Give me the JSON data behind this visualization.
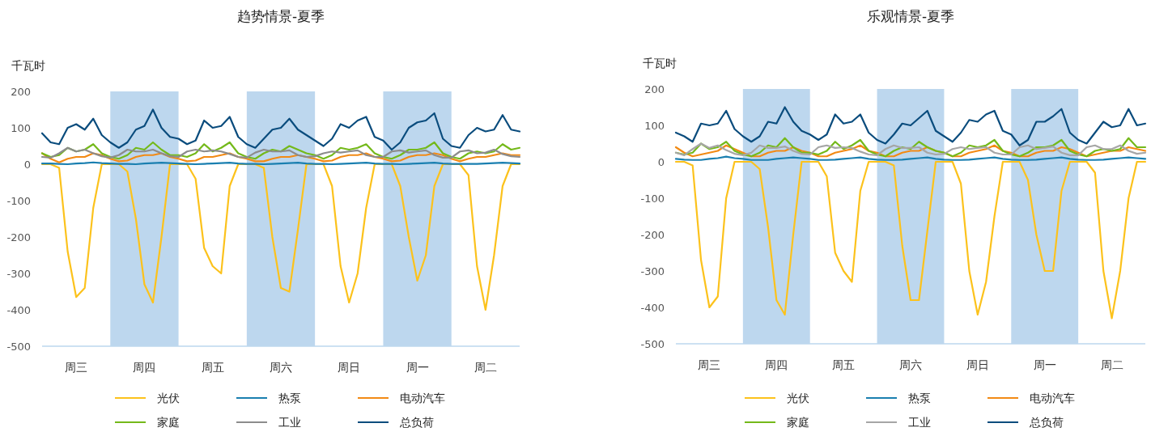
{
  "chart_data": [
    {
      "type": "line",
      "title": "趋势情景-夏季",
      "ylabel": "千瓦时",
      "grid": false,
      "legend": "bottom",
      "marker": "none",
      "line_style": "solid",
      "categories": [
        null,
        null,
        null,
        null,
        "周三",
        null,
        null,
        null,
        null,
        null,
        null,
        null,
        "周四",
        null,
        null,
        null,
        null,
        null,
        null,
        null,
        "周五",
        null,
        null,
        null,
        null,
        null,
        null,
        null,
        "周六",
        null,
        null,
        null,
        null,
        null,
        null,
        null,
        "周日",
        null,
        null,
        null,
        null,
        null,
        null,
        null,
        "周一",
        null,
        null,
        null,
        null,
        null,
        null,
        null,
        "周二",
        null,
        null,
        null,
        null
      ],
      "ylim": [
        -500,
        200
      ],
      "yticks": [
        -500,
        -400,
        -300,
        -200,
        -100,
        0,
        100,
        200
      ],
      "series": [
        {
          "name": "光伏",
          "color": "#fcc21c",
          "values": [
            0,
            0,
            -10,
            -240,
            -365,
            -340,
            -120,
            0,
            0,
            0,
            -20,
            -150,
            -330,
            -380,
            -200,
            0,
            0,
            0,
            -40,
            -230,
            -280,
            -300,
            -60,
            0,
            0,
            0,
            -10,
            -200,
            -340,
            -350,
            -180,
            0,
            0,
            0,
            -60,
            -280,
            -380,
            -300,
            -120,
            0,
            0,
            0,
            -60,
            -200,
            -320,
            -250,
            -60,
            0,
            0,
            0,
            -30,
            -280,
            -400,
            -250,
            -60,
            0,
            0
          ]
        },
        {
          "name": "热泵",
          "color": "#1a7fb0",
          "values": [
            2,
            2,
            1,
            0,
            2,
            3,
            5,
            3,
            2,
            1,
            1,
            0,
            2,
            3,
            4,
            3,
            2,
            1,
            0,
            1,
            2,
            3,
            4,
            2,
            1,
            1,
            0,
            1,
            2,
            3,
            4,
            2,
            1,
            1,
            0,
            1,
            2,
            3,
            4,
            2,
            1,
            1,
            0,
            1,
            2,
            3,
            4,
            2,
            1,
            1,
            1,
            1,
            2,
            3,
            4,
            3,
            2
          ]
        },
        {
          "name": "电动汽车",
          "color": "#f28a14",
          "values": [
            30,
            15,
            5,
            15,
            20,
            20,
            30,
            25,
            15,
            8,
            10,
            20,
            25,
            25,
            30,
            20,
            15,
            8,
            10,
            20,
            20,
            25,
            30,
            20,
            15,
            8,
            8,
            15,
            20,
            20,
            25,
            20,
            15,
            8,
            10,
            20,
            25,
            25,
            30,
            20,
            15,
            8,
            10,
            20,
            25,
            25,
            30,
            25,
            15,
            8,
            15,
            20,
            20,
            25,
            30,
            25,
            25
          ]
        },
        {
          "name": "家庭",
          "color": "#74b91a",
          "values": [
            30,
            20,
            25,
            45,
            35,
            40,
            55,
            30,
            20,
            15,
            25,
            45,
            40,
            60,
            40,
            25,
            25,
            20,
            30,
            55,
            35,
            45,
            60,
            30,
            20,
            15,
            30,
            40,
            35,
            50,
            40,
            30,
            25,
            15,
            25,
            45,
            40,
            45,
            55,
            30,
            20,
            15,
            25,
            40,
            40,
            45,
            60,
            30,
            20,
            15,
            30,
            35,
            30,
            35,
            55,
            40,
            45
          ]
        },
        {
          "name": "工业",
          "color": "#8c8c8c",
          "values": [
            20,
            18,
            30,
            45,
            35,
            40,
            30,
            22,
            18,
            25,
            40,
            35,
            35,
            40,
            30,
            22,
            20,
            35,
            40,
            35,
            38,
            35,
            28,
            20,
            18,
            32,
            40,
            35,
            35,
            38,
            25,
            20,
            22,
            30,
            35,
            32,
            35,
            38,
            25,
            20,
            20,
            35,
            38,
            32,
            35,
            38,
            25,
            18,
            18,
            35,
            38,
            30,
            32,
            40,
            28,
            22,
            20
          ]
        },
        {
          "name": "总负荷",
          "color": "#0a4c7d",
          "values": [
            85,
            60,
            55,
            100,
            110,
            95,
            125,
            80,
            60,
            45,
            60,
            95,
            105,
            150,
            100,
            75,
            70,
            55,
            65,
            120,
            100,
            105,
            130,
            75,
            55,
            45,
            70,
            95,
            100,
            125,
            95,
            80,
            65,
            50,
            70,
            110,
            100,
            120,
            130,
            75,
            65,
            40,
            60,
            100,
            115,
            120,
            140,
            70,
            50,
            45,
            80,
            100,
            90,
            95,
            135,
            95,
            90
          ]
        }
      ]
    },
    {
      "type": "line",
      "title": "乐观情景-夏季",
      "ylabel": "千瓦时",
      "grid": false,
      "legend": "bottom",
      "marker": "none",
      "line_style": "solid",
      "categories": [
        null,
        null,
        null,
        null,
        "周三",
        null,
        null,
        null,
        null,
        null,
        null,
        null,
        "周四",
        null,
        null,
        null,
        null,
        null,
        null,
        null,
        "周五",
        null,
        null,
        null,
        null,
        null,
        null,
        null,
        "周六",
        null,
        null,
        null,
        null,
        null,
        null,
        null,
        "周日",
        null,
        null,
        null,
        null,
        null,
        null,
        null,
        "周一",
        null,
        null,
        null,
        null,
        null,
        null,
        null,
        "周二",
        null,
        null,
        null,
        null
      ],
      "ylim": [
        -500,
        200
      ],
      "yticks": [
        -500,
        -400,
        -300,
        -200,
        -100,
        0,
        100,
        200
      ],
      "series": [
        {
          "name": "光伏",
          "color": "#fcc21c",
          "values": [
            0,
            0,
            -10,
            -270,
            -400,
            -370,
            -100,
            0,
            0,
            0,
            -20,
            -180,
            -380,
            -420,
            -200,
            0,
            0,
            0,
            -40,
            -250,
            -300,
            -330,
            -80,
            0,
            0,
            0,
            -10,
            -230,
            -380,
            -380,
            -190,
            0,
            0,
            0,
            -60,
            -300,
            -420,
            -330,
            -150,
            0,
            0,
            0,
            -50,
            -200,
            -300,
            -300,
            -80,
            0,
            0,
            0,
            -30,
            -300,
            -430,
            -300,
            -100,
            0,
            0
          ]
        },
        {
          "name": "热泵",
          "color": "#1a7fb0",
          "values": [
            8,
            6,
            5,
            5,
            8,
            10,
            14,
            10,
            8,
            5,
            5,
            5,
            8,
            10,
            12,
            10,
            8,
            5,
            5,
            6,
            8,
            10,
            12,
            8,
            6,
            5,
            5,
            6,
            8,
            10,
            12,
            8,
            6,
            5,
            5,
            6,
            8,
            10,
            12,
            8,
            6,
            5,
            5,
            6,
            8,
            10,
            12,
            8,
            6,
            5,
            5,
            6,
            8,
            10,
            12,
            10,
            8
          ]
        },
        {
          "name": "电动汽车",
          "color": "#f28a14",
          "values": [
            40,
            25,
            15,
            20,
            25,
            30,
            45,
            35,
            25,
            15,
            15,
            25,
            30,
            30,
            40,
            30,
            25,
            15,
            15,
            25,
            30,
            35,
            45,
            30,
            25,
            15,
            15,
            25,
            30,
            30,
            40,
            30,
            25,
            15,
            15,
            25,
            30,
            35,
            45,
            30,
            25,
            15,
            15,
            25,
            30,
            30,
            40,
            35,
            25,
            15,
            20,
            25,
            30,
            30,
            40,
            35,
            30
          ]
        },
        {
          "name": "家庭",
          "color": "#74b91a",
          "values": [
            25,
            20,
            25,
            50,
            35,
            40,
            55,
            30,
            20,
            15,
            25,
            45,
            40,
            65,
            40,
            25,
            25,
            20,
            30,
            55,
            35,
            45,
            60,
            30,
            20,
            15,
            30,
            40,
            35,
            55,
            40,
            30,
            25,
            15,
            25,
            45,
            40,
            45,
            60,
            30,
            20,
            15,
            25,
            40,
            40,
            45,
            60,
            30,
            20,
            15,
            30,
            35,
            30,
            35,
            65,
            40,
            40
          ]
        },
        {
          "name": "工业",
          "color": "#a6a6a6",
          "values": [
            25,
            18,
            35,
            50,
            38,
            45,
            32,
            22,
            18,
            25,
            45,
            38,
            38,
            42,
            30,
            22,
            20,
            40,
            45,
            38,
            40,
            38,
            28,
            20,
            18,
            35,
            45,
            38,
            38,
            40,
            25,
            20,
            22,
            35,
            40,
            35,
            38,
            40,
            25,
            20,
            20,
            40,
            45,
            35,
            38,
            42,
            25,
            18,
            18,
            40,
            45,
            35,
            35,
            45,
            30,
            22,
            25
          ]
        },
        {
          "name": "总负荷",
          "color": "#0a4c7d",
          "values": [
            80,
            70,
            55,
            105,
            100,
            105,
            140,
            90,
            70,
            55,
            70,
            110,
            105,
            150,
            110,
            85,
            75,
            60,
            75,
            130,
            105,
            110,
            130,
            80,
            60,
            50,
            75,
            105,
            100,
            120,
            140,
            85,
            70,
            55,
            80,
            115,
            110,
            130,
            140,
            85,
            75,
            45,
            60,
            110,
            110,
            125,
            145,
            80,
            60,
            50,
            80,
            110,
            95,
            100,
            145,
            100,
            105
          ]
        }
      ]
    }
  ]
}
